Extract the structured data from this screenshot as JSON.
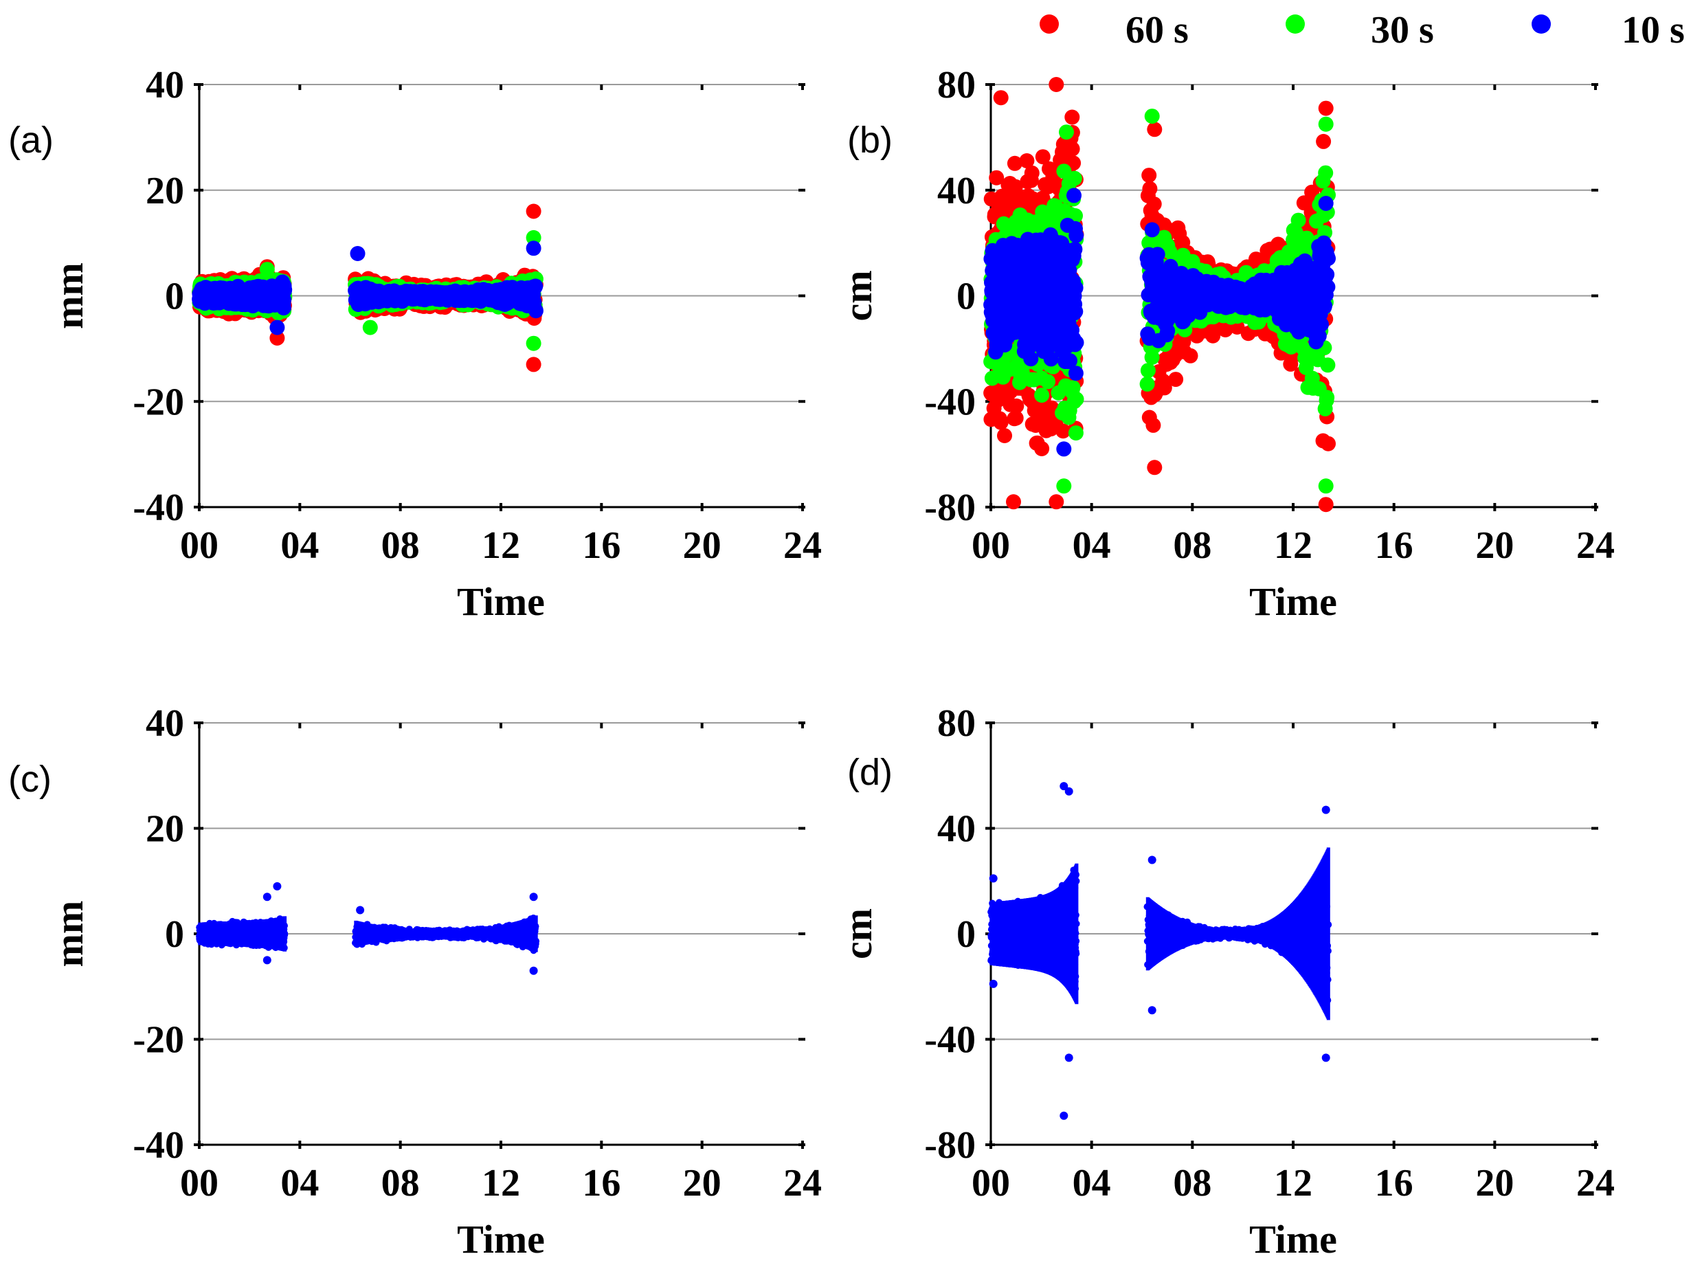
{
  "colors": {
    "60 s": "#ff0000",
    "30 s": "#00ff00",
    "10 s": "#0000ff"
  },
  "legend": [
    {
      "label": "60 s",
      "color": "#ff0000"
    },
    {
      "label": "30 s",
      "color": "#00ff00"
    },
    {
      "label": "10 s",
      "color": "#0000ff"
    }
  ],
  "chart_data": [
    {
      "panel": "(a)",
      "type": "scatter",
      "xlabel": "Time",
      "ylabel": "mm",
      "xlim": [
        0,
        24
      ],
      "ylim": [
        -40,
        40
      ],
      "xticks": [
        "00",
        "04",
        "08",
        "12",
        "16",
        "20",
        "24"
      ],
      "yticks": [
        -40,
        -20,
        0,
        20,
        40
      ],
      "grid": true,
      "segments": [
        [
          0,
          3.4
        ],
        [
          6.2,
          13.4
        ]
      ],
      "series": [
        {
          "name": "60 s",
          "color": "#ff0000",
          "amp_start": 4,
          "amp_mid": 2.5,
          "amp_end": 5,
          "extremes": [
            [
              13.3,
              16
            ],
            [
              13.3,
              -13
            ],
            [
              3.1,
              -8
            ],
            [
              2.7,
              5.5
            ]
          ]
        },
        {
          "name": "30 s",
          "color": "#00ff00",
          "amp_start": 3,
          "amp_mid": 1.8,
          "amp_end": 4,
          "extremes": [
            [
              13.3,
              11
            ],
            [
              13.3,
              -9
            ],
            [
              6.8,
              -6
            ],
            [
              2.7,
              5
            ]
          ]
        },
        {
          "name": "10 s",
          "color": "#0000ff",
          "amp_start": 2,
          "amp_mid": 1,
          "amp_end": 3,
          "extremes": [
            [
              6.3,
              8
            ],
            [
              13.3,
              9
            ],
            [
              3.1,
              -6
            ]
          ]
        }
      ]
    },
    {
      "panel": "(b)",
      "type": "scatter",
      "xlabel": "Time",
      "ylabel": "cm",
      "xlim": [
        0,
        24
      ],
      "ylim": [
        -80,
        80
      ],
      "xticks": [
        "00",
        "04",
        "08",
        "12",
        "16",
        "20",
        "24"
      ],
      "yticks": [
        -80,
        -40,
        0,
        40,
        80
      ],
      "grid": true,
      "segments": [
        [
          0,
          3.4
        ],
        [
          6.2,
          13.4
        ]
      ],
      "series": [
        {
          "name": "60 s",
          "color": "#ff0000",
          "amp_start": 62,
          "amp_mid": 15,
          "amp_end": 72,
          "extremes": [
            [
              2.6,
              80
            ],
            [
              2.6,
              -78
            ],
            [
              0.4,
              75
            ],
            [
              0.9,
              -78
            ],
            [
              13.3,
              -79
            ],
            [
              13.3,
              71
            ],
            [
              6.5,
              -65
            ],
            [
              6.5,
              63
            ]
          ]
        },
        {
          "name": "30 s",
          "color": "#00ff00",
          "amp_start": 40,
          "amp_mid": 9,
          "amp_end": 62,
          "extremes": [
            [
              6.4,
              68
            ],
            [
              13.3,
              65
            ],
            [
              13.3,
              -72
            ],
            [
              2.9,
              -72
            ],
            [
              3.0,
              62
            ]
          ]
        },
        {
          "name": "10 s",
          "color": "#0000ff",
          "amp_start": 25,
          "amp_mid": 5,
          "amp_end": 33,
          "extremes": [
            [
              3.3,
              38
            ],
            [
              13.3,
              35
            ],
            [
              2.9,
              -58
            ],
            [
              6.4,
              25
            ]
          ]
        }
      ]
    },
    {
      "panel": "(c)",
      "type": "scatter",
      "xlabel": "Time",
      "ylabel": "mm",
      "xlim": [
        0,
        24
      ],
      "ylim": [
        -40,
        40
      ],
      "xticks": [
        "00",
        "04",
        "08",
        "12",
        "16",
        "20",
        "24"
      ],
      "yticks": [
        -40,
        -20,
        0,
        20,
        40
      ],
      "grid": true,
      "segments": [
        [
          0,
          3.4
        ],
        [
          6.2,
          13.4
        ]
      ],
      "series": [
        {
          "name": "10 s",
          "color": "#0000ff",
          "amp_start": 2.5,
          "amp_mid": 0.8,
          "amp_end": 3.5,
          "extremes": [
            [
              3.1,
              9
            ],
            [
              2.7,
              7
            ],
            [
              13.3,
              7
            ],
            [
              13.3,
              -7
            ],
            [
              2.7,
              -5
            ],
            [
              6.4,
              4.5
            ]
          ]
        }
      ]
    },
    {
      "panel": "(d)",
      "type": "scatter",
      "xlabel": "Time",
      "ylabel": "cm",
      "xlim": [
        0,
        24
      ],
      "ylim": [
        -80,
        80
      ],
      "xticks": [
        "00",
        "04",
        "08",
        "12",
        "16",
        "20",
        "24"
      ],
      "yticks": [
        -80,
        -40,
        0,
        40,
        80
      ],
      "grid": true,
      "segments": [
        [
          0,
          3.4
        ],
        [
          6.2,
          13.4
        ]
      ],
      "series": [
        {
          "name": "10 s",
          "color": "#0000ff",
          "amp_start": 14,
          "amp_mid": 2,
          "amp_end": 33,
          "extremes": [
            [
              2.9,
              56
            ],
            [
              3.1,
              54
            ],
            [
              2.9,
              -69
            ],
            [
              3.1,
              -47
            ],
            [
              13.3,
              47
            ],
            [
              13.3,
              -47
            ],
            [
              6.4,
              28
            ],
            [
              6.4,
              -29
            ],
            [
              0.1,
              21
            ],
            [
              0.1,
              -19
            ]
          ]
        }
      ]
    }
  ]
}
